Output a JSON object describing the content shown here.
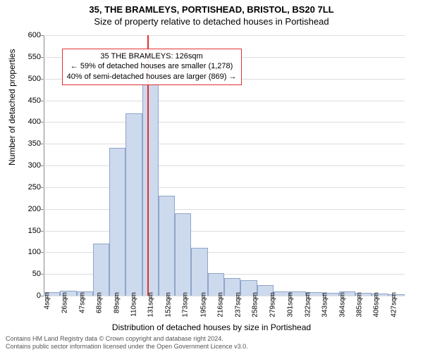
{
  "title": {
    "line1": "35, THE BRAMLEYS, PORTISHEAD, BRISTOL, BS20 7LL",
    "line2": "Size of property relative to detached houses in Portishead"
  },
  "chart": {
    "type": "histogram",
    "ylabel": "Number of detached properties",
    "xlabel": "Distribution of detached houses by size in Portishead",
    "ylim": [
      0,
      600
    ],
    "ytick_step": 50,
    "xlim_sqm": [
      0,
      440
    ],
    "xticks": [
      4,
      26,
      47,
      68,
      89,
      110,
      131,
      152,
      173,
      195,
      216,
      237,
      258,
      279,
      301,
      322,
      343,
      364,
      385,
      406,
      427
    ],
    "xtick_suffix": "sqm",
    "bins": [
      {
        "start": 0,
        "end": 20,
        "count": 8
      },
      {
        "start": 20,
        "end": 40,
        "count": 12
      },
      {
        "start": 40,
        "end": 60,
        "count": 10
      },
      {
        "start": 60,
        "end": 80,
        "count": 120
      },
      {
        "start": 80,
        "end": 100,
        "count": 340
      },
      {
        "start": 100,
        "end": 120,
        "count": 420
      },
      {
        "start": 120,
        "end": 140,
        "count": 490
      },
      {
        "start": 140,
        "end": 160,
        "count": 230
      },
      {
        "start": 160,
        "end": 180,
        "count": 190
      },
      {
        "start": 180,
        "end": 200,
        "count": 110
      },
      {
        "start": 200,
        "end": 220,
        "count": 52
      },
      {
        "start": 220,
        "end": 240,
        "count": 40
      },
      {
        "start": 240,
        "end": 260,
        "count": 35
      },
      {
        "start": 260,
        "end": 280,
        "count": 25
      },
      {
        "start": 280,
        "end": 300,
        "count": 9
      },
      {
        "start": 300,
        "end": 320,
        "count": 10
      },
      {
        "start": 320,
        "end": 340,
        "count": 8
      },
      {
        "start": 340,
        "end": 360,
        "count": 6
      },
      {
        "start": 360,
        "end": 380,
        "count": 10
      },
      {
        "start": 380,
        "end": 400,
        "count": 6
      },
      {
        "start": 400,
        "end": 420,
        "count": 5
      },
      {
        "start": 420,
        "end": 440,
        "count": 4
      }
    ],
    "bar_fill": "#cdd9ed",
    "bar_border": "#8fa5c8",
    "grid_color": "#dddddd",
    "axis_color": "#888888",
    "background_color": "#ffffff",
    "tick_fontsize": 11,
    "label_fontsize": 12,
    "marker": {
      "value_sqm": 126,
      "color": "#e03030"
    },
    "info_box": {
      "line1": "35 THE BRAMLEYS: 126sqm",
      "line2": "← 59% of detached houses are smaller (1,278)",
      "line3": "40% of semi-detached houses are larger (869) →",
      "border_color": "#e03030",
      "left_sqm": 22,
      "top_count": 570
    }
  },
  "footer": {
    "line1": "Contains HM Land Registry data © Crown copyright and database right 2024.",
    "line2": "Contains public sector information licensed under the Open Government Licence v3.0."
  }
}
